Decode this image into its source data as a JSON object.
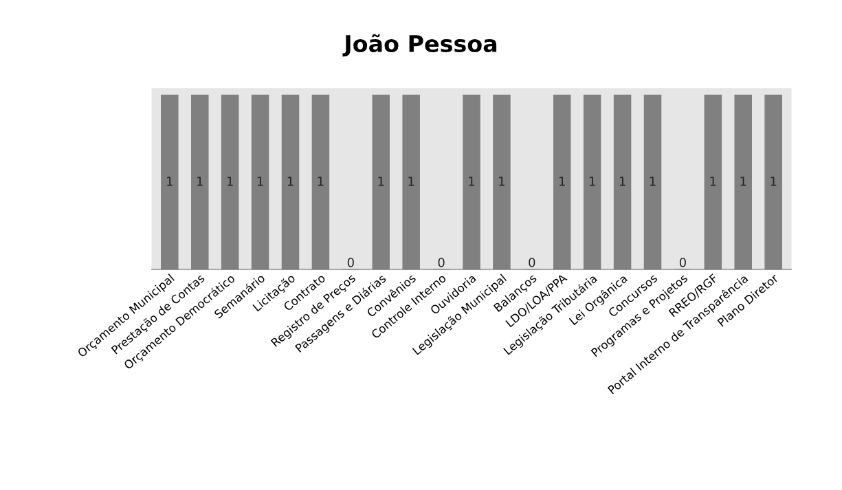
{
  "chart_data": {
    "type": "bar",
    "title": "João Pessoa",
    "categories": [
      "Orçamento Municipal",
      "Prestação de Contas",
      "Orçamento Democrático",
      "Semanário",
      "Licitação",
      "Contrato",
      "Registro de Preços",
      "Passagens e Diárias",
      "Convênios",
      "Controle Interno",
      "Ouvidoria",
      "Legislação Municipal",
      "Balanços",
      "LDO/LOA/PPA",
      "Legislação Tributária",
      "Lei Orgânica",
      "Concursos",
      "Programas e Projetos",
      "RREO/RGF",
      "Portal Interno de Transparência",
      "Plano Diretor"
    ],
    "values": [
      1,
      1,
      1,
      1,
      1,
      1,
      0,
      1,
      1,
      0,
      1,
      1,
      0,
      1,
      1,
      1,
      1,
      0,
      1,
      1,
      1
    ],
    "color": "#808080",
    "data_labels": true,
    "grid": false,
    "legend": false
  }
}
